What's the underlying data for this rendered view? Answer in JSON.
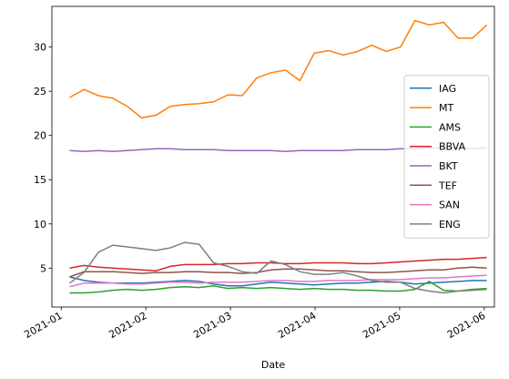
{
  "chart_data": {
    "type": "line",
    "xlabel": "Date",
    "x": [
      0.1,
      0.27,
      0.44,
      0.61,
      0.78,
      0.95,
      1.12,
      1.29,
      1.46,
      1.63,
      1.8,
      1.97,
      2.14,
      2.31,
      2.48,
      2.65,
      2.82,
      2.99,
      3.16,
      3.33,
      3.5,
      3.67,
      3.84,
      4.01,
      4.18,
      4.35,
      4.52,
      4.69,
      4.86,
      5.03
    ],
    "series": [
      {
        "name": "IAG",
        "color": "#1f77b4",
        "values": [
          4.0,
          3.6,
          3.4,
          3.3,
          3.3,
          3.3,
          3.4,
          3.5,
          3.6,
          3.5,
          3.2,
          3.0,
          3.0,
          3.2,
          3.4,
          3.3,
          3.2,
          3.1,
          3.2,
          3.3,
          3.3,
          3.4,
          3.5,
          3.4,
          3.2,
          3.3,
          3.4,
          3.5,
          3.6,
          3.6
        ]
      },
      {
        "name": "MT",
        "color": "#ff7f0e",
        "values": [
          24.3,
          25.2,
          24.5,
          24.2,
          23.3,
          22,
          22.3,
          23.3,
          23.5,
          23.6,
          23.8,
          24.6,
          24.5,
          26.5,
          27.1,
          27.4,
          26.2,
          29.3,
          29.6,
          29.1,
          29.5,
          30.2,
          29.5,
          30,
          33,
          32.5,
          32.8,
          31,
          31,
          32.5
        ]
      },
      {
        "name": "AMS",
        "color": "#2ca02c",
        "values": [
          2.2,
          2.2,
          2.3,
          2.5,
          2.6,
          2.5,
          2.6,
          2.8,
          2.9,
          2.8,
          3.0,
          2.7,
          2.8,
          2.7,
          2.8,
          2.7,
          2.6,
          2.7,
          2.6,
          2.6,
          2.5,
          2.5,
          2.4,
          2.4,
          2.6,
          3.5,
          2.5,
          2.4,
          2.6,
          2.7
        ]
      },
      {
        "name": "BBVA",
        "color": "#d62728",
        "values": [
          5.0,
          5.3,
          5.1,
          5.0,
          4.9,
          4.8,
          4.7,
          5.2,
          5.4,
          5.4,
          5.4,
          5.5,
          5.5,
          5.6,
          5.6,
          5.5,
          5.5,
          5.6,
          5.6,
          5.6,
          5.5,
          5.5,
          5.6,
          5.7,
          5.8,
          5.9,
          6.0,
          6.0,
          6.1,
          6.2
        ]
      },
      {
        "name": "BKT",
        "color": "#9467bd",
        "values": [
          18.3,
          18.2,
          18.3,
          18.2,
          18.3,
          18.4,
          18.5,
          18.5,
          18.4,
          18.4,
          18.4,
          18.3,
          18.3,
          18.3,
          18.3,
          18.2,
          18.3,
          18.3,
          18.3,
          18.3,
          18.4,
          18.4,
          18.4,
          18.5,
          18.5,
          18.6,
          18.6,
          18.6,
          18.5,
          18.6
        ]
      },
      {
        "name": "TEF",
        "color": "#8c564b",
        "values": [
          4.0,
          4.6,
          4.6,
          4.6,
          4.5,
          4.4,
          4.5,
          4.5,
          4.6,
          4.6,
          4.5,
          4.5,
          4.4,
          4.5,
          4.8,
          4.9,
          4.9,
          4.8,
          4.7,
          4.7,
          4.6,
          4.5,
          4.5,
          4.6,
          4.7,
          4.8,
          4.8,
          5.0,
          5.1,
          5.0
        ]
      },
      {
        "name": "SAN",
        "color": "#e377c2",
        "values": [
          2.9,
          3.3,
          3.3,
          3.3,
          3.2,
          3.2,
          3.3,
          3.4,
          3.4,
          3.3,
          3.4,
          3.4,
          3.4,
          3.5,
          3.6,
          3.6,
          3.5,
          3.5,
          3.6,
          3.6,
          3.6,
          3.7,
          3.7,
          3.7,
          3.8,
          3.9,
          3.9,
          4.0,
          4.1,
          4.2
        ]
      },
      {
        "name": "ENG",
        "color": "#7f7f7f",
        "values": [
          3.3,
          4.5,
          6.8,
          7.6,
          7.4,
          7.2,
          7.0,
          7.3,
          7.9,
          7.7,
          5.6,
          5.2,
          4.6,
          4.4,
          5.8,
          5.4,
          4.6,
          4.3,
          4.3,
          4.5,
          4.1,
          3.6,
          3.4,
          3.4,
          2.7,
          2.4,
          2.2,
          2.4,
          2.5,
          2.6
        ]
      }
    ],
    "xlim": [
      -0.11,
      5.12
    ],
    "xticks": [
      {
        "value": 0,
        "label": "2021-01"
      },
      {
        "value": 1,
        "label": "2021-02"
      },
      {
        "value": 2,
        "label": "2021-03"
      },
      {
        "value": 3,
        "label": "2021-04"
      },
      {
        "value": 4,
        "label": "2021-05"
      },
      {
        "value": 5,
        "label": "2021-06"
      }
    ],
    "ylim": [
      0.6,
      34.6
    ],
    "yticks": [
      5,
      10,
      15,
      20,
      25,
      30
    ],
    "legend": "right"
  }
}
